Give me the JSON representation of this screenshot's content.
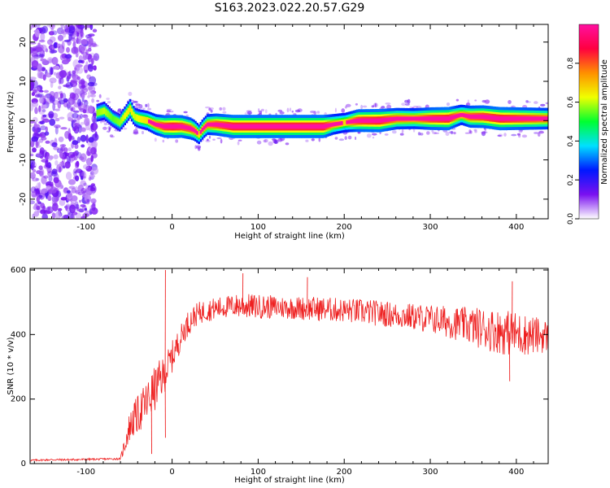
{
  "title": "S163.2023.022.20.57.G29",
  "chart_data": [
    {
      "type": "heatmap",
      "xlabel": "Height of straight line (km)",
      "ylabel": "Frequency (Hz)",
      "xlim": [
        -165,
        437
      ],
      "ylim": [
        -25,
        24.5
      ],
      "xticks": [
        -100,
        0,
        100,
        200,
        300,
        400
      ],
      "yticks": [
        -20,
        -10,
        0,
        10,
        20
      ],
      "colorbar": {
        "label": "Normalized spectral amplitude",
        "ticks": [
          0.0,
          0.2,
          0.4,
          0.6,
          0.8
        ],
        "range": [
          0,
          1
        ],
        "colormap": [
          "#ffffff",
          "#7a10f0",
          "#0018ff",
          "#00e0ff",
          "#00ff30",
          "#f0ff00",
          "#ff9000",
          "#ff0040",
          "#ff10a0"
        ]
      },
      "noise_region_x": [
        -165,
        -88
      ],
      "ridge": {
        "x": [
          -88,
          -80,
          -70,
          -62,
          -55,
          -50,
          -45,
          -40,
          -30,
          -20,
          -10,
          0,
          10,
          20,
          25,
          30,
          35,
          40,
          50,
          70,
          100,
          130,
          150,
          175,
          185,
          200,
          215,
          240,
          260,
          280,
          300,
          320,
          335,
          345,
          360,
          380,
          400,
          420,
          437
        ],
        "y": [
          2.0,
          2.5,
          0.5,
          -0.5,
          1.5,
          3.0,
          1.0,
          0.5,
          0.0,
          -1.0,
          -1.5,
          -1.5,
          -1.5,
          -2.0,
          -2.5,
          -3.5,
          -2.0,
          -1.0,
          -1.0,
          -1.5,
          -1.5,
          -1.5,
          -1.5,
          -1.5,
          -1.0,
          -0.5,
          0.0,
          0.0,
          0.5,
          0.5,
          0.5,
          0.5,
          1.5,
          1.0,
          1.0,
          0.5,
          0.5,
          0.5,
          0.5
        ],
        "amplitude": [
          0.45,
          0.5,
          0.4,
          0.45,
          0.55,
          0.6,
          0.5,
          0.55,
          0.6,
          0.7,
          0.85,
          0.9,
          0.85,
          0.8,
          0.7,
          0.6,
          0.65,
          0.7,
          0.8,
          0.9,
          0.9,
          0.9,
          0.9,
          0.9,
          0.7,
          0.6,
          0.85,
          0.9,
          0.75,
          0.7,
          0.85,
          0.9,
          0.65,
          0.8,
          0.85,
          0.9,
          0.85,
          0.8,
          0.75
        ]
      }
    },
    {
      "type": "line",
      "xlabel": "Height of straight line (km)",
      "ylabel": "SNR (10 * v/v)",
      "xlim": [
        -165,
        437
      ],
      "ylim": [
        0,
        605
      ],
      "xticks": [
        -100,
        0,
        100,
        200,
        300,
        400
      ],
      "yticks": [
        0,
        200,
        400,
        600
      ],
      "series": [
        {
          "color": "#ee2020",
          "x": [
            -165,
            -140,
            -120,
            -100,
            -80,
            -60,
            -55,
            -50,
            -45,
            -40,
            -35,
            -30,
            -25,
            -20,
            -15,
            -10,
            -5,
            0,
            5,
            10,
            15,
            20,
            25,
            30,
            40,
            50,
            60,
            70,
            80,
            90,
            100,
            120,
            140,
            160,
            180,
            200,
            220,
            240,
            260,
            280,
            300,
            320,
            340,
            360,
            380,
            400,
            420,
            437
          ],
          "y": [
            10,
            12,
            12,
            13,
            14,
            15,
            60,
            110,
            135,
            150,
            170,
            185,
            210,
            230,
            255,
            270,
            300,
            330,
            360,
            390,
            420,
            440,
            455,
            465,
            475,
            480,
            485,
            488,
            490,
            488,
            487,
            485,
            483,
            481,
            478,
            475,
            471,
            466,
            460,
            455,
            448,
            440,
            430,
            420,
            410,
            402,
            398,
            395
          ],
          "noise": [
            3,
            3,
            3,
            3,
            3,
            3,
            30,
            45,
            55,
            60,
            65,
            70,
            70,
            70,
            65,
            60,
            55,
            50,
            45,
            40,
            40,
            40,
            35,
            35,
            35,
            35,
            35,
            35,
            40,
            38,
            38,
            36,
            36,
            38,
            38,
            38,
            40,
            40,
            40,
            42,
            45,
            50,
            55,
            65,
            70,
            70,
            60,
            50
          ]
        }
      ],
      "spikes": [
        {
          "x": -8,
          "y": 600
        },
        {
          "x": 82,
          "y": 590
        },
        {
          "x": 157,
          "y": 578
        },
        {
          "x": -24,
          "y": 30
        },
        {
          "x": -8,
          "y": 80
        },
        {
          "x": 392,
          "y": 255
        },
        {
          "x": 395,
          "y": 565
        }
      ]
    }
  ]
}
